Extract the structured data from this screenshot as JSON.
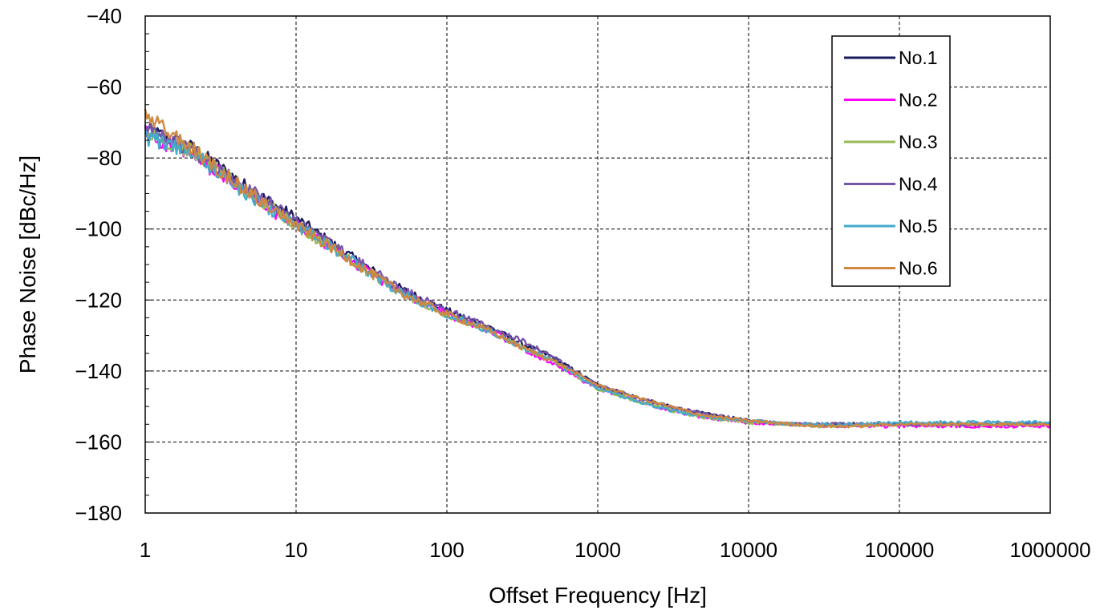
{
  "chart_data": {
    "type": "line",
    "xlabel": "Offset Frequency [Hz]",
    "ylabel": "Phase Noise [dBc/Hz]",
    "x_scale": "log",
    "xlim": [
      1,
      1000000
    ],
    "ylim": [
      -180,
      -40
    ],
    "x_ticks": [
      "1",
      "10",
      "100",
      "1000",
      "10000",
      "100000",
      "1000000"
    ],
    "y_ticks": [
      "-40",
      "-60",
      "-80",
      "-100",
      "-120",
      "-140",
      "-160",
      "-180"
    ],
    "grid": true,
    "legend_position": "top-right",
    "x": [
      1,
      2,
      3,
      5,
      10,
      20,
      30,
      50,
      100,
      200,
      300,
      500,
      1000,
      2000,
      3000,
      5000,
      10000,
      20000,
      30000,
      50000,
      100000,
      200000,
      500000,
      1000000
    ],
    "series": [
      {
        "name": "No.1",
        "color": "#1a1a5e",
        "values": [
          -72,
          -77,
          -82,
          -89,
          -97,
          -106,
          -111,
          -117,
          -123,
          -128,
          -132,
          -136,
          -144,
          -148,
          -150,
          -152,
          -154,
          -155,
          -155,
          -155,
          -155,
          -155,
          -155,
          -155
        ]
      },
      {
        "name": "No.2",
        "color": "#ff00ff",
        "values": [
          -73,
          -79,
          -84,
          -91,
          -99,
          -107,
          -112,
          -118,
          -124,
          -129,
          -133,
          -138,
          -145,
          -149,
          -151,
          -153,
          -154.5,
          -155,
          -155.5,
          -155.5,
          -155.5,
          -155.5,
          -155.5,
          -155.5
        ]
      },
      {
        "name": "No.3",
        "color": "#99bb55",
        "values": [
          -73,
          -78,
          -83,
          -90,
          -99,
          -107,
          -112,
          -118,
          -124,
          -129,
          -133,
          -137,
          -145,
          -149,
          -151,
          -153,
          -154.5,
          -155,
          -155.5,
          -155.5,
          -155,
          -155,
          -155,
          -155
        ]
      },
      {
        "name": "No.4",
        "color": "#7755aa",
        "values": [
          -72,
          -78,
          -83,
          -89,
          -98,
          -106,
          -111,
          -117,
          -123,
          -128,
          -131,
          -136,
          -144,
          -148,
          -150,
          -152,
          -154,
          -155,
          -155,
          -155,
          -155,
          -155,
          -155,
          -155
        ]
      },
      {
        "name": "No.5",
        "color": "#44aacc",
        "values": [
          -74,
          -78,
          -84,
          -91,
          -99,
          -107,
          -112,
          -118,
          -124,
          -129,
          -133,
          -137,
          -145,
          -149,
          -151,
          -153,
          -154,
          -155,
          -155,
          -155,
          -154.5,
          -154.5,
          -154.5,
          -154.5
        ]
      },
      {
        "name": "No.6",
        "color": "#d08840",
        "values": [
          -68,
          -77,
          -83,
          -90,
          -99,
          -107,
          -112,
          -118,
          -124,
          -129,
          -133,
          -137,
          -144,
          -148,
          -150,
          -152.5,
          -154,
          -155,
          -155.5,
          -155.5,
          -155,
          -155,
          -155,
          -155
        ]
      }
    ]
  }
}
